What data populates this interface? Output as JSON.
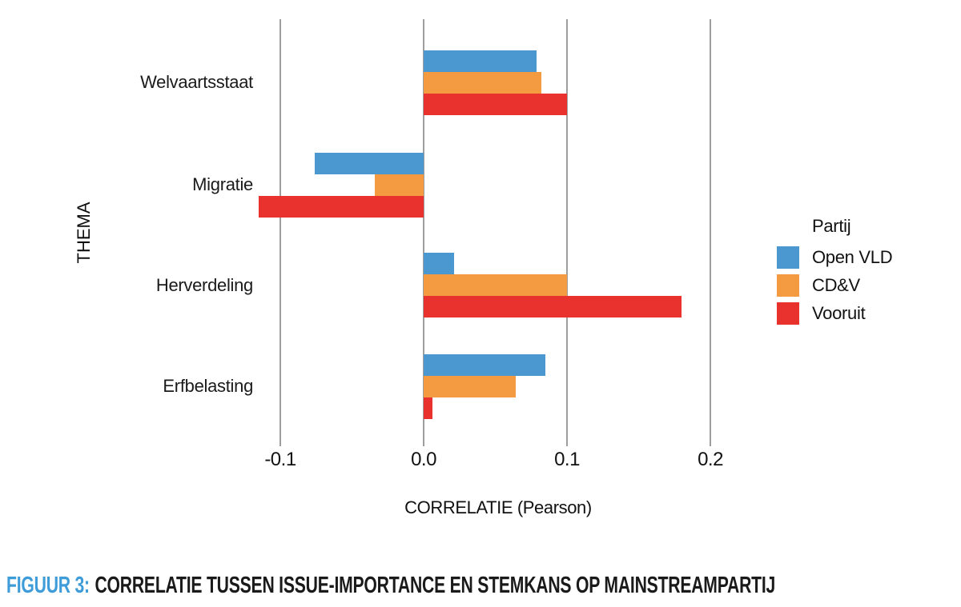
{
  "chart_data": {
    "type": "bar",
    "orientation": "horizontal",
    "xlabel": "CORRELATIE (Pearson)",
    "ylabel": "THEMA",
    "categories": [
      "Welvaartsstaat",
      "Migratie",
      "Herverdeling",
      "Erfbelasting"
    ],
    "series": [
      {
        "name": "Open VLD",
        "color": "#4a98cf",
        "values": [
          0.079,
          -0.076,
          0.021,
          0.085
        ]
      },
      {
        "name": "CD&V",
        "color": "#f49b42",
        "values": [
          0.082,
          -0.034,
          0.1,
          0.064
        ]
      },
      {
        "name": "Vooruit",
        "color": "#e9312e",
        "values": [
          0.1,
          -0.115,
          0.18,
          0.006
        ]
      }
    ],
    "x_ticks": [
      -0.1,
      0.0,
      0.1,
      0.2
    ],
    "x_tick_labels": [
      "-0.1",
      "0.0",
      "0.1",
      "0.2"
    ],
    "xlim": [
      -0.125,
      0.225
    ],
    "grid": "vertical",
    "grid_color": "#9e9e9e",
    "legend_title": "Partij",
    "legend_position": "right"
  },
  "caption": {
    "prefix": "FIGUUR 3:",
    "text": "CORRELATIE TUSSEN ISSUE-IMPORTANCE EN STEMKANS OP MAINSTREAMPARTIJ",
    "accent_color": "#3e9cd9"
  },
  "colors": {
    "background": "#ffffff",
    "text": "#1a1a1a"
  }
}
